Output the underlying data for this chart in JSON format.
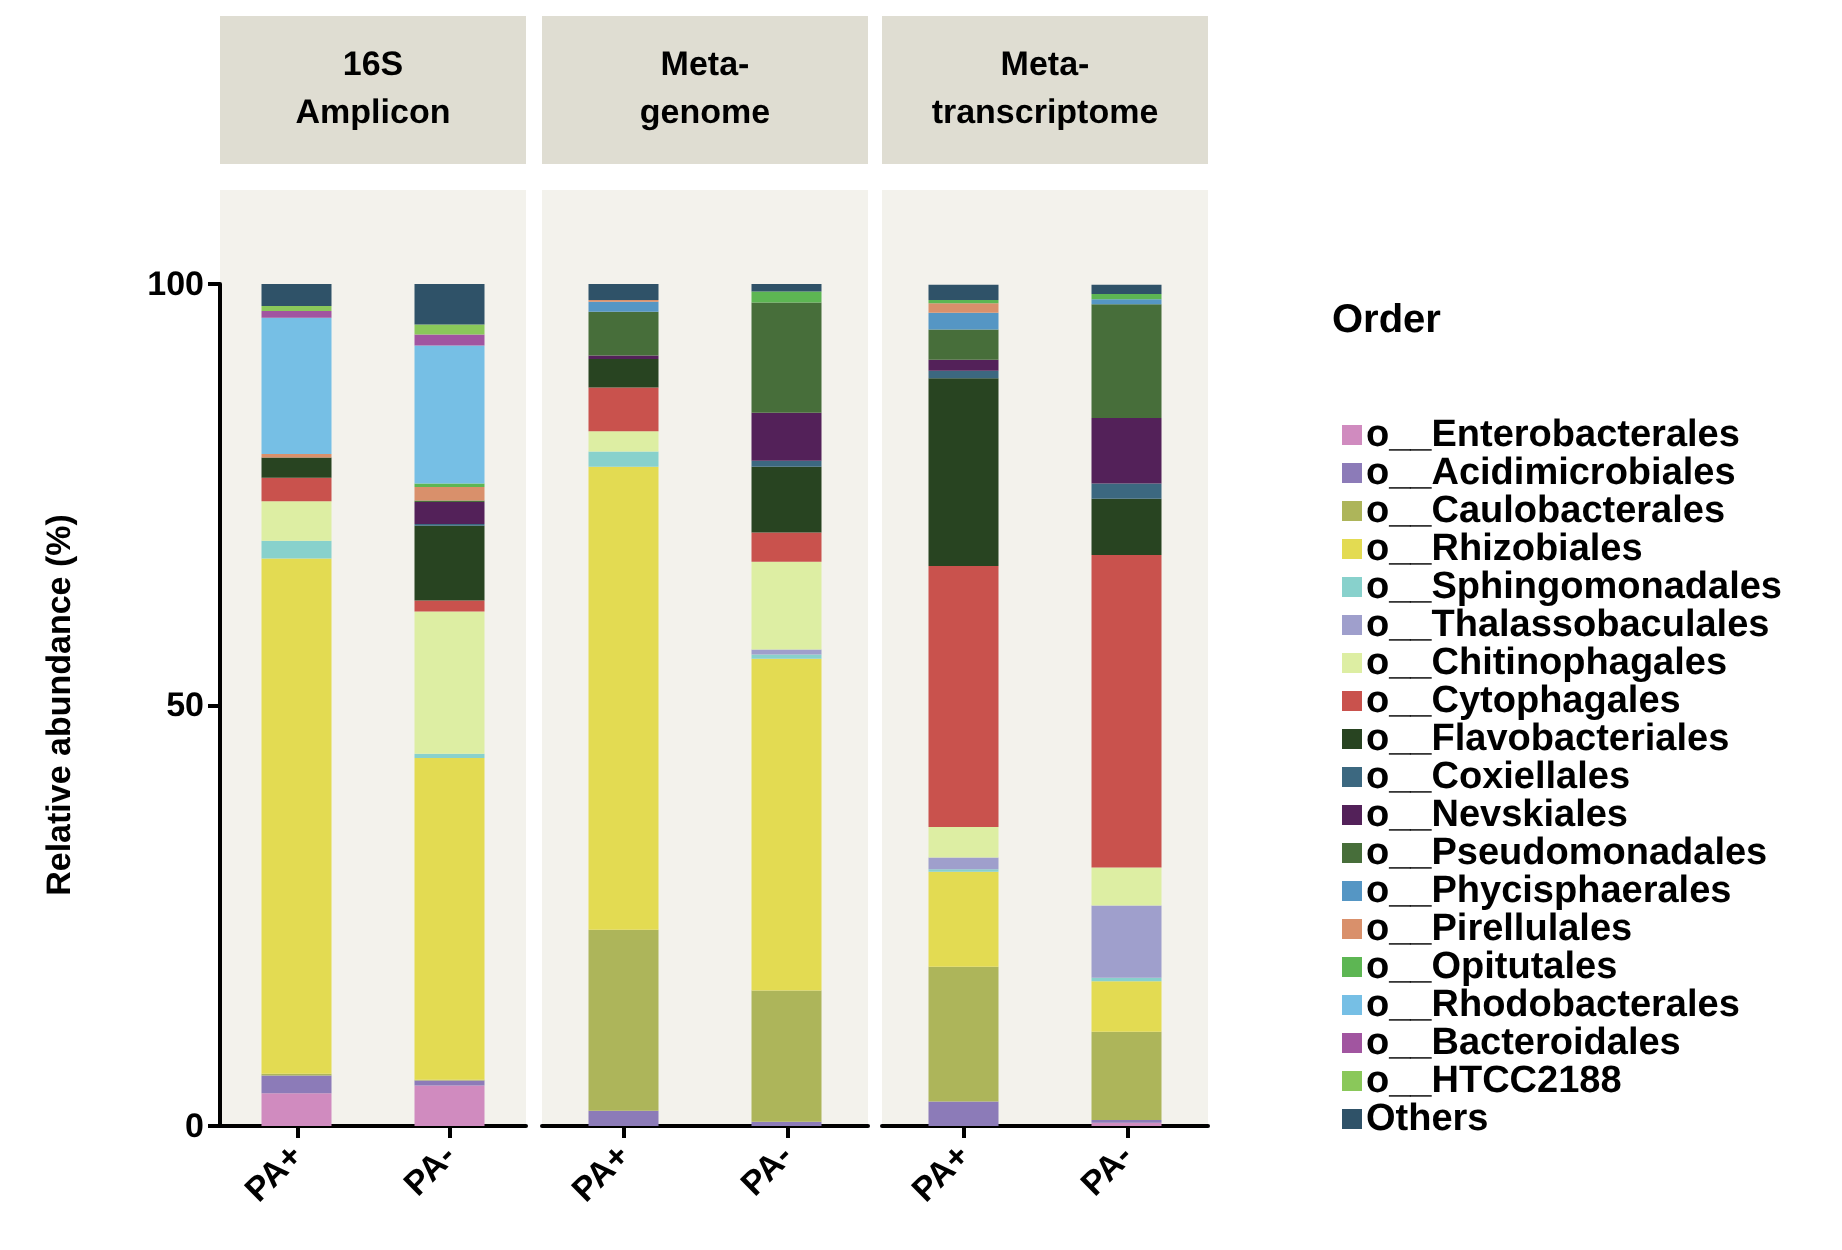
{
  "chart_data": [
    {
      "type": "bar",
      "stacked": true,
      "title": "16S\nAmplicon",
      "ylabel": "Relative abundance (%)",
      "categories": [
        "PA+",
        "PA-"
      ],
      "ylim": [
        0,
        100
      ],
      "yticks": [
        0,
        50,
        100
      ],
      "grid": false,
      "legend": false,
      "series": [
        {
          "color": "#d08bbf",
          "values": [
            3.9,
            4.8
          ]
        },
        {
          "color": "#8c7bb8",
          "values": [
            2.1,
            0.6
          ]
        },
        {
          "color": "#adb55a",
          "values": [
            0.2,
            0.1
          ]
        },
        {
          "color": "#e3db52",
          "values": [
            61.2,
            38.2
          ]
        },
        {
          "color": "#88d1cc",
          "values": [
            2.1,
            0.5
          ]
        },
        {
          "color": "#9f9fcc",
          "values": [
            0,
            0
          ]
        },
        {
          "color": "#ddeea3",
          "values": [
            4.7,
            16.9
          ]
        },
        {
          "color": "#c9524d",
          "values": [
            2.8,
            1.3
          ]
        },
        {
          "color": "#284421",
          "values": [
            2.4,
            8.9
          ]
        },
        {
          "color": "#3c6880",
          "values": [
            0,
            0.2
          ]
        },
        {
          "color": "#532159",
          "values": [
            0,
            2.6
          ]
        },
        {
          "color": "#476e3a",
          "values": [
            0,
            0.2
          ]
        },
        {
          "color": "#5596c4",
          "values": [
            0,
            0
          ]
        },
        {
          "color": "#d9906b",
          "values": [
            0.4,
            1.6
          ]
        },
        {
          "color": "#5db653",
          "values": [
            0,
            0.4
          ]
        },
        {
          "color": "#76bfe5",
          "values": [
            16.2,
            16.4
          ]
        },
        {
          "color": "#a155a0",
          "values": [
            0.8,
            1.3
          ]
        },
        {
          "color": "#8ac85a",
          "values": [
            0.6,
            1.2
          ]
        },
        {
          "color": "#2f5268",
          "values": [
            2.6,
            4.8
          ]
        }
      ]
    },
    {
      "type": "bar",
      "stacked": true,
      "title": "Meta-\ngenome",
      "categories": [
        "PA+",
        "PA-"
      ],
      "ylim": [
        0,
        100
      ],
      "yticks": [
        0,
        50,
        100
      ],
      "tick_labels": "x",
      "grid": false,
      "legend": false,
      "series": [
        {
          "color": "#d08bbf",
          "values": [
            0,
            0
          ]
        },
        {
          "color": "#8c7bb8",
          "values": [
            1.8,
            0.5
          ]
        },
        {
          "color": "#adb55a",
          "values": [
            21.5,
            15.6
          ]
        },
        {
          "color": "#e3db52",
          "values": [
            55.0,
            39.4
          ]
        },
        {
          "color": "#88d1cc",
          "values": [
            1.8,
            0.5
          ]
        },
        {
          "color": "#9f9fcc",
          "values": [
            0,
            0.6
          ]
        },
        {
          "color": "#ddeea3",
          "values": [
            2.4,
            10.4
          ]
        },
        {
          "color": "#c9524d",
          "values": [
            5.2,
            3.5
          ]
        },
        {
          "color": "#284421",
          "values": [
            3.4,
            7.8
          ]
        },
        {
          "color": "#3c6880",
          "values": [
            0,
            0.7
          ]
        },
        {
          "color": "#532159",
          "values": [
            0.4,
            5.7
          ]
        },
        {
          "color": "#476e3a",
          "values": [
            5.2,
            13.1
          ]
        },
        {
          "color": "#5596c4",
          "values": [
            1.2,
            0
          ]
        },
        {
          "color": "#d9906b",
          "values": [
            0.2,
            0
          ]
        },
        {
          "color": "#5db653",
          "values": [
            0,
            1.3
          ]
        },
        {
          "color": "#76bfe5",
          "values": [
            0,
            0
          ]
        },
        {
          "color": "#a155a0",
          "values": [
            0,
            0
          ]
        },
        {
          "color": "#8ac85a",
          "values": [
            0,
            0
          ]
        },
        {
          "color": "#2f5268",
          "values": [
            1.9,
            1.0
          ]
        }
      ]
    },
    {
      "type": "bar",
      "stacked": true,
      "title": "Meta-\ntranscriptome",
      "legend_title": "Order",
      "categories": [
        "PA+",
        "PA-"
      ],
      "ylim": [
        0,
        100
      ],
      "yticks": [
        0,
        50,
        100
      ],
      "tick_labels": "x",
      "grid": false,
      "legend": "right",
      "series": [
        {
          "name": "o__Enterobacterales",
          "color": "#d08bbf",
          "values": [
            0,
            0.4
          ]
        },
        {
          "name": "o__Acidimicrobiales",
          "color": "#8c7bb8",
          "values": [
            2.9,
            0.3
          ]
        },
        {
          "name": "o__Caulobacterales",
          "color": "#adb55a",
          "values": [
            16.0,
            10.5
          ]
        },
        {
          "name": "o__Rhizobiales",
          "color": "#e3db52",
          "values": [
            11.3,
            6.0
          ]
        },
        {
          "name": "o__Sphingomonadales",
          "color": "#88d1cc",
          "values": [
            0.3,
            0.4
          ]
        },
        {
          "name": "o__Thalassobaculales",
          "color": "#9f9fcc",
          "values": [
            1.4,
            8.6
          ]
        },
        {
          "name": "o__Chitinophagales",
          "color": "#ddeea3",
          "values": [
            3.6,
            4.5
          ]
        },
        {
          "name": "o__Cytophagales",
          "color": "#c9524d",
          "values": [
            31.0,
            37.1
          ]
        },
        {
          "name": "o__Flavobacteriales",
          "color": "#284421",
          "values": [
            22.3,
            6.7
          ]
        },
        {
          "name": "o__Coxiellales",
          "color": "#3c6880",
          "values": [
            0.9,
            1.8
          ]
        },
        {
          "name": "o__Nevskiales",
          "color": "#532159",
          "values": [
            1.3,
            7.8
          ]
        },
        {
          "name": "o__Pseudomonadales",
          "color": "#476e3a",
          "values": [
            3.6,
            13.5
          ]
        },
        {
          "name": "o__Phycisphaerales",
          "color": "#5596c4",
          "values": [
            2.0,
            0.6
          ]
        },
        {
          "name": "o__Pirellulales",
          "color": "#d9906b",
          "values": [
            1.1,
            0
          ]
        },
        {
          "name": "o__Opitutales",
          "color": "#5db653",
          "values": [
            0.4,
            0.6
          ]
        },
        {
          "name": "o__Rhodobacterales",
          "color": "#76bfe5",
          "values": [
            0,
            0
          ]
        },
        {
          "name": "o__Bacteroidales",
          "color": "#a155a0",
          "values": [
            0,
            0
          ]
        },
        {
          "name": "o__HTCC2188",
          "color": "#8ac85a",
          "values": [
            0,
            0
          ]
        },
        {
          "name": "Others",
          "color": "#2f5268",
          "values": [
            1.8,
            1.1
          ]
        }
      ]
    }
  ]
}
